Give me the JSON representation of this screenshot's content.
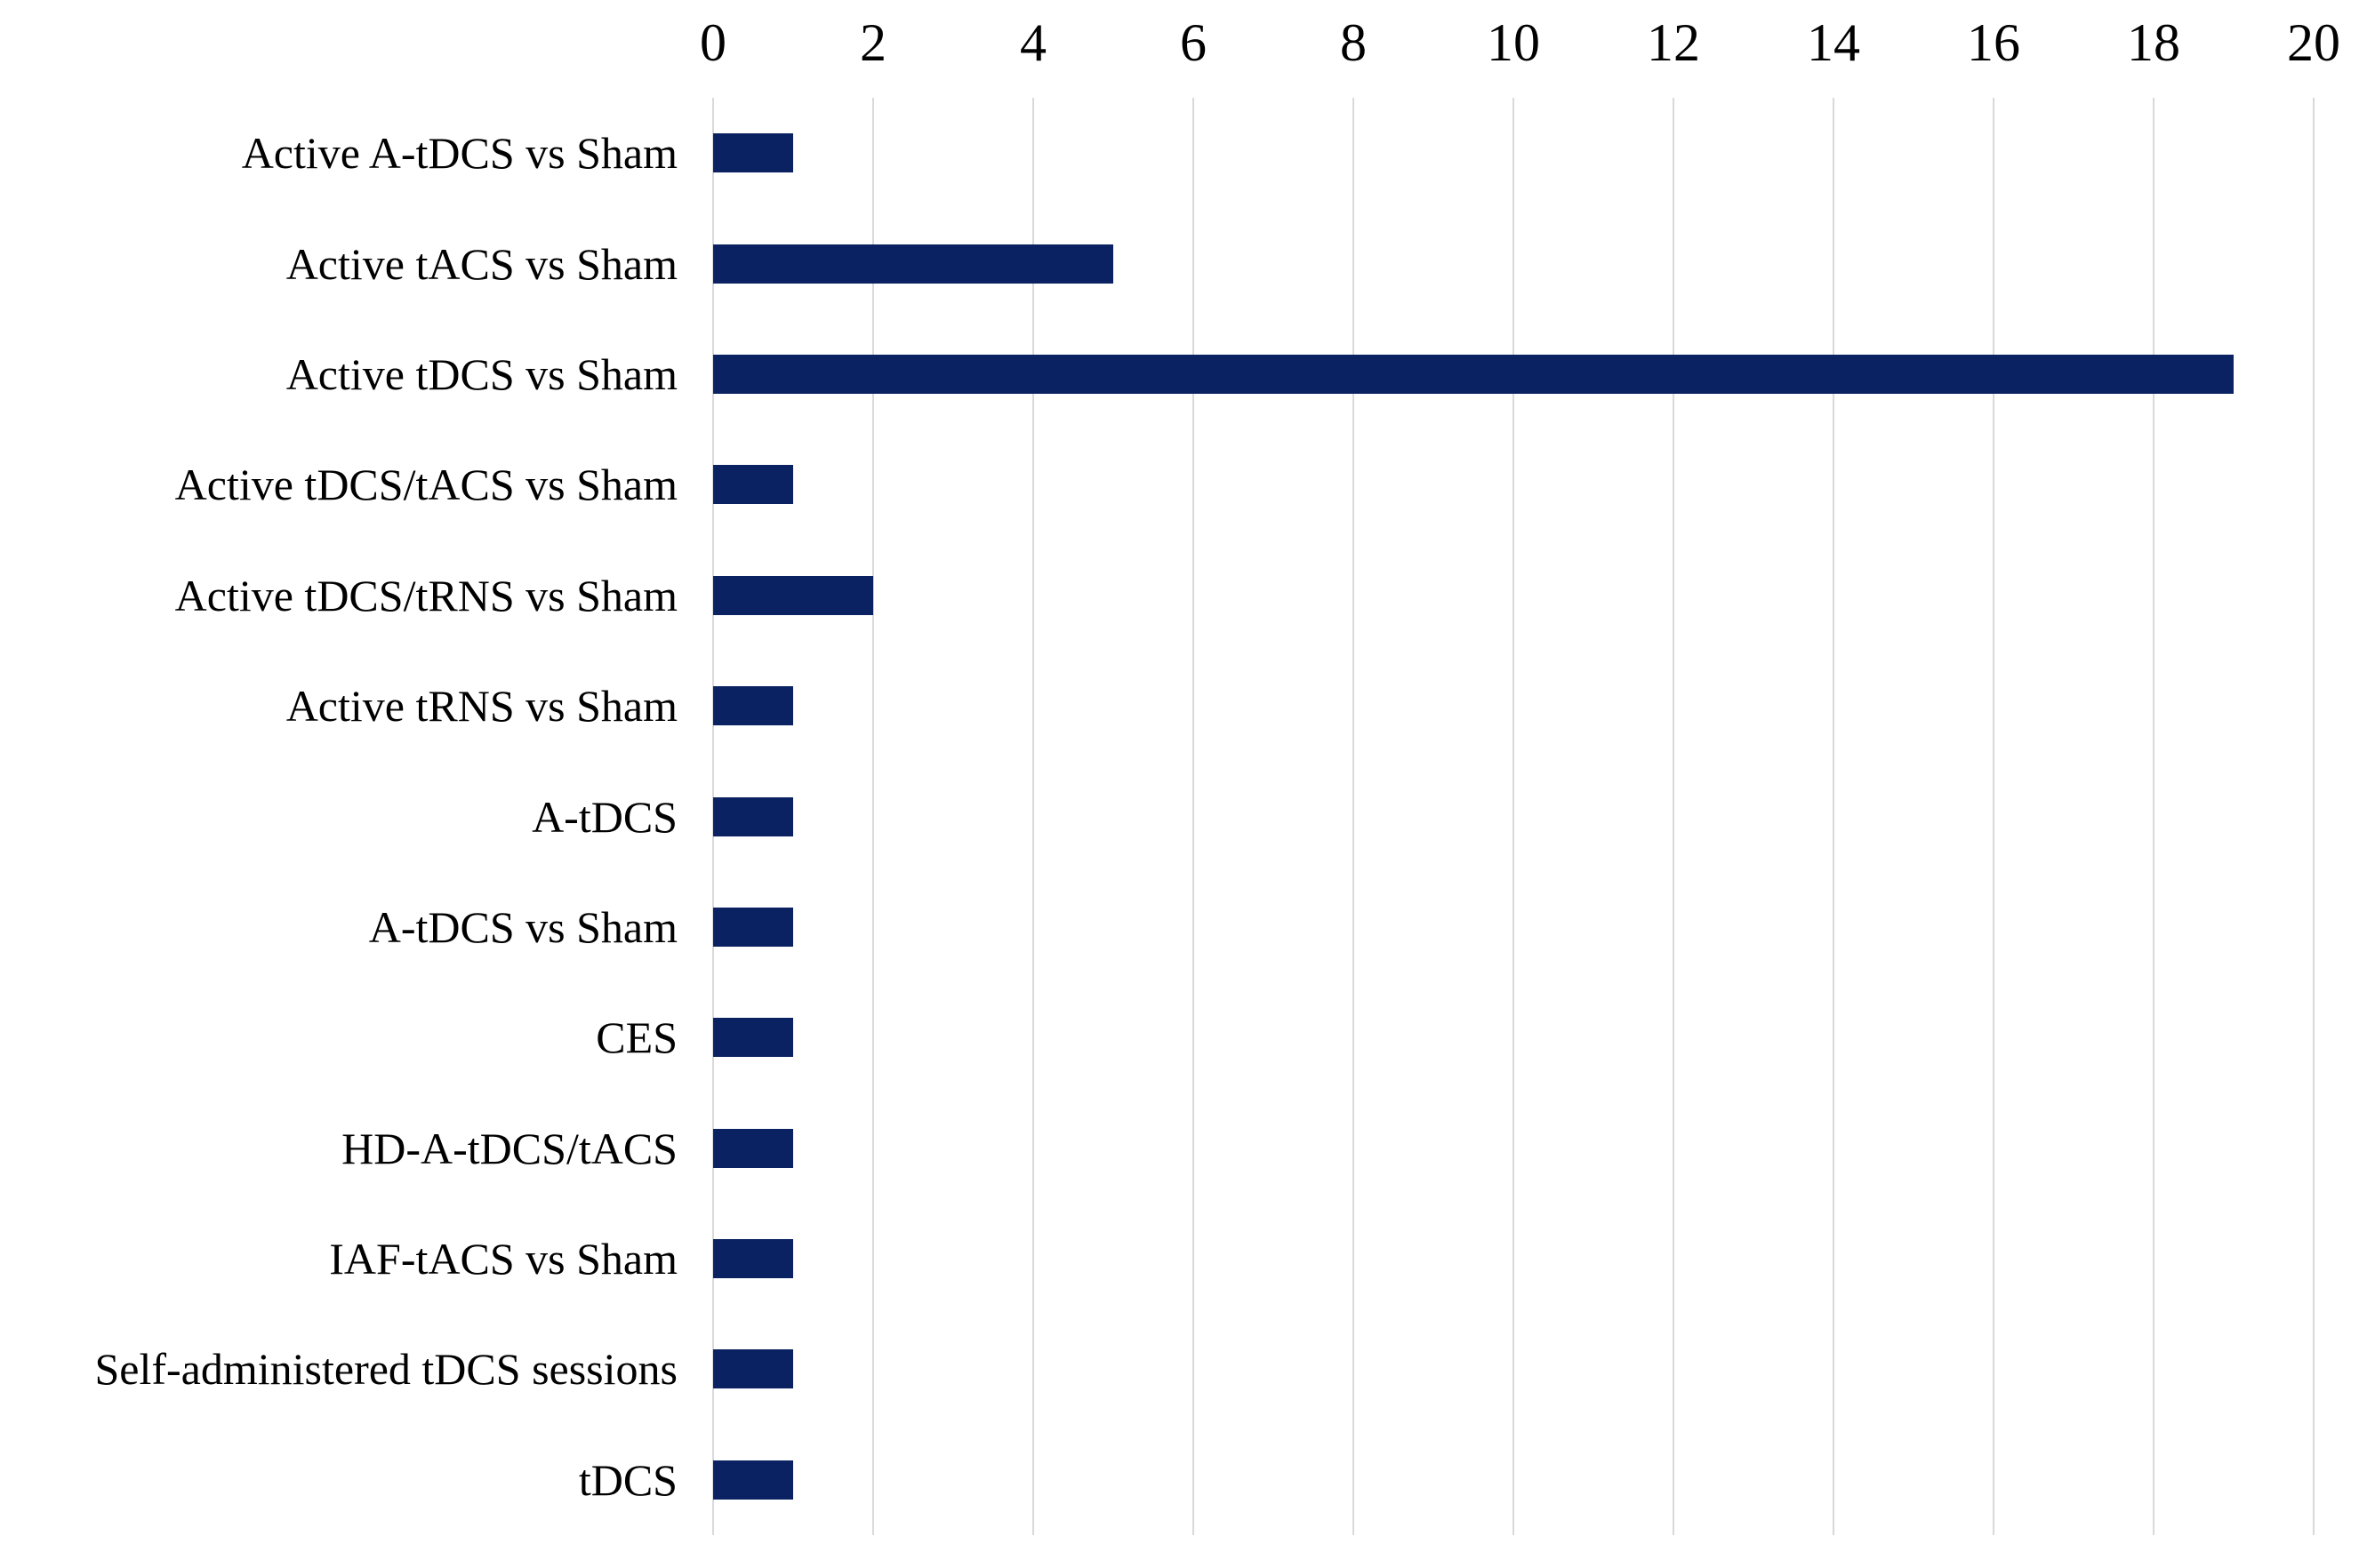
{
  "chart_data": {
    "type": "bar",
    "orientation": "horizontal",
    "title": "",
    "xlabel": "",
    "ylabel": "",
    "categories": [
      "Active A-tDCS vs Sham",
      "Active tACS vs Sham",
      "Active tDCS vs Sham",
      "Active tDCS/tACS vs Sham",
      "Active tDCS/tRNS vs Sham",
      "Active tRNS vs Sham",
      "A-tDCS",
      "A-tDCS vs Sham",
      "CES",
      "HD-A-tDCS/tACS",
      "IAF-tACS vs Sham",
      "Self-administered tDCS sessions",
      "tDCS"
    ],
    "values": [
      1,
      5,
      19,
      1,
      2,
      1,
      1,
      1,
      1,
      1,
      1,
      1,
      1
    ],
    "xlim": [
      0,
      20
    ],
    "xticks": [
      0,
      2,
      4,
      6,
      8,
      10,
      12,
      14,
      16,
      18,
      20
    ],
    "tick_position": "top",
    "grid": "vertical",
    "legend": "none",
    "bar_color": "#0a2261",
    "gridline_color": "#d9d9d9",
    "text_color": "#000000"
  }
}
